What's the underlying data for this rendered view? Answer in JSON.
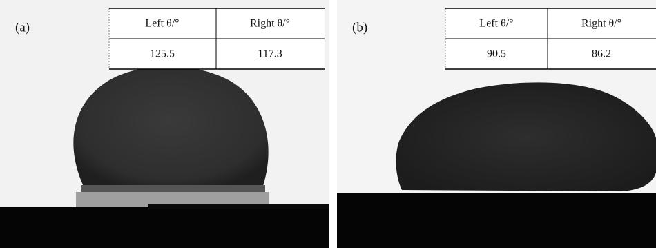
{
  "panels": [
    {
      "label": "(a)",
      "table": {
        "header": [
          "Left θ/°",
          "Right θ/°"
        ],
        "rows": [
          [
            "125.5",
            "117.3"
          ]
        ]
      }
    },
    {
      "label": "(b)",
      "table": {
        "header": [
          "Left θ/°",
          "Right θ/°"
        ],
        "rows": [
          [
            "90.5",
            "86.2"
          ]
        ]
      }
    }
  ]
}
